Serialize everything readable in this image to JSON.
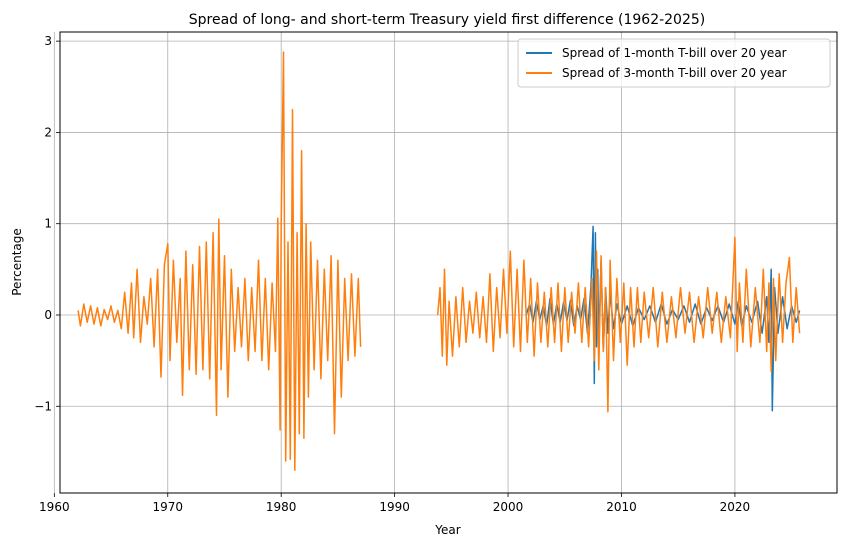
{
  "chart_data": {
    "type": "line",
    "title": "Spread of long- and short-term Treasury yield first difference (1962-2025)",
    "xlabel": "Year",
    "ylabel": "Percentage",
    "xlim": [
      1960.5,
      2029.0
    ],
    "ylim": [
      -1.95,
      3.1
    ],
    "x_ticks": [
      1960,
      1970,
      1980,
      1990,
      2000,
      2010,
      2020
    ],
    "y_ticks": [
      -1,
      0,
      1,
      2,
      3
    ],
    "y_tick_labels": [
      "−1",
      "0",
      "1",
      "2",
      "3"
    ],
    "grid": true,
    "legend_position": "upper right",
    "series": [
      {
        "name": "Spread of 1-month T-bill over 20 year",
        "color": "#1f77b4",
        "x": [
          2001.6,
          2001.9,
          2002.2,
          2002.5,
          2002.8,
          2003.1,
          2003.4,
          2003.7,
          2004.0,
          2004.3,
          2004.6,
          2004.9,
          2005.2,
          2005.5,
          2005.8,
          2006.1,
          2006.4,
          2006.7,
          2007.0,
          2007.3,
          2007.5,
          2007.6,
          2007.7,
          2007.8,
          2007.9,
          2008.0,
          2008.2,
          2008.4,
          2008.6,
          2008.8,
          2009.0,
          2009.3,
          2009.6,
          2010.0,
          2010.5,
          2011.0,
          2011.5,
          2012.0,
          2012.5,
          2013.0,
          2013.5,
          2014.0,
          2014.5,
          2015.0,
          2015.5,
          2016.0,
          2016.5,
          2017.0,
          2017.5,
          2018.0,
          2018.5,
          2019.0,
          2019.5,
          2020.0,
          2020.3,
          2020.6,
          2021.0,
          2021.5,
          2022.0,
          2022.4,
          2022.8,
          2023.0,
          2023.2,
          2023.3,
          2023.5,
          2023.8,
          2024.2,
          2024.6,
          2025.0,
          2025.4,
          2025.7
        ],
        "y": [
          0.0,
          0.12,
          -0.08,
          0.15,
          -0.05,
          0.1,
          -0.12,
          0.18,
          -0.1,
          0.12,
          -0.08,
          0.14,
          -0.06,
          0.16,
          -0.12,
          0.1,
          -0.05,
          0.18,
          -0.2,
          0.3,
          0.97,
          -0.75,
          0.9,
          -0.35,
          0.5,
          -0.3,
          0.6,
          -0.4,
          0.3,
          -0.2,
          0.25,
          -0.15,
          0.12,
          -0.1,
          0.1,
          -0.12,
          0.08,
          -0.05,
          0.1,
          -0.08,
          0.12,
          -0.1,
          0.06,
          -0.05,
          0.1,
          -0.08,
          0.12,
          -0.1,
          0.08,
          -0.06,
          0.1,
          -0.08,
          0.12,
          -0.1,
          0.15,
          -0.12,
          0.1,
          -0.08,
          0.15,
          -0.2,
          0.2,
          -0.3,
          0.5,
          -1.05,
          0.3,
          -0.2,
          0.2,
          -0.15,
          0.1,
          -0.08,
          0.05
        ]
      },
      {
        "name": "Spread of 3-month T-bill over 20 year",
        "color": "#ff7f0e",
        "x": [
          1962.1,
          1962.3,
          1962.6,
          1962.9,
          1963.2,
          1963.5,
          1963.8,
          1964.1,
          1964.4,
          1964.7,
          1965.0,
          1965.3,
          1965.6,
          1965.9,
          1966.2,
          1966.5,
          1966.8,
          1967.0,
          1967.3,
          1967.6,
          1967.9,
          1968.2,
          1968.5,
          1968.8,
          1969.1,
          1969.4,
          1969.7,
          1970.0,
          1970.2,
          1970.5,
          1970.8,
          1971.1,
          1971.3,
          1971.6,
          1971.9,
          1972.2,
          1972.5,
          1972.8,
          1973.1,
          1973.4,
          1973.7,
          1974.0,
          1974.3,
          1974.5,
          1974.7,
          1975.0,
          1975.3,
          1975.6,
          1975.9,
          1976.2,
          1976.5,
          1976.8,
          1977.1,
          1977.4,
          1977.7,
          1978.0,
          1978.3,
          1978.6,
          1978.9,
          1979.2,
          1979.5,
          1979.7,
          1979.9,
          1980.0,
          1980.2,
          1980.4,
          1980.6,
          1980.8,
          1981.0,
          1981.2,
          1981.4,
          1981.6,
          1981.8,
          1982.0,
          1982.2,
          1982.4,
          1982.6,
          1982.9,
          1983.2,
          1983.5,
          1983.8,
          1984.1,
          1984.4,
          1984.7,
          1985.0,
          1985.3,
          1985.6,
          1985.9,
          1986.2,
          1986.5,
          1986.8,
          1987.0,
          1993.8,
          1994.0,
          1994.2,
          1994.4,
          1994.6,
          1994.8,
          1995.1,
          1995.4,
          1995.7,
          1996.0,
          1996.3,
          1996.6,
          1996.9,
          1997.2,
          1997.5,
          1997.8,
          1998.1,
          1998.4,
          1998.7,
          1999.0,
          1999.3,
          1999.6,
          1999.9,
          2000.2,
          2000.5,
          2000.8,
          2001.1,
          2001.4,
          2001.7,
          2002.0,
          2002.3,
          2002.6,
          2002.9,
          2003.2,
          2003.5,
          2003.8,
          2004.1,
          2004.4,
          2004.7,
          2005.0,
          2005.3,
          2005.6,
          2005.9,
          2006.2,
          2006.5,
          2006.8,
          2007.1,
          2007.4,
          2007.6,
          2007.8,
          2008.0,
          2008.2,
          2008.4,
          2008.6,
          2008.8,
          2009.0,
          2009.3,
          2009.6,
          2009.9,
          2010.2,
          2010.5,
          2010.8,
          2011.1,
          2011.4,
          2011.7,
          2012.0,
          2012.4,
          2012.8,
          2013.2,
          2013.6,
          2014.0,
          2014.4,
          2014.8,
          2015.2,
          2015.6,
          2016.0,
          2016.4,
          2016.8,
          2017.2,
          2017.6,
          2018.0,
          2018.4,
          2018.8,
          2019.2,
          2019.6,
          2020.0,
          2020.2,
          2020.4,
          2020.7,
          2021.0,
          2021.4,
          2021.8,
          2022.2,
          2022.5,
          2022.8,
          2023.0,
          2023.2,
          2023.4,
          2023.6,
          2023.9,
          2024.2,
          2024.5,
          2024.8,
          2025.1,
          2025.4,
          2025.7
        ],
        "y": [
          0.05,
          -0.12,
          0.12,
          -0.08,
          0.1,
          -0.1,
          0.08,
          -0.12,
          0.06,
          -0.05,
          0.1,
          -0.08,
          0.05,
          -0.15,
          0.25,
          -0.2,
          0.35,
          -0.25,
          0.5,
          -0.3,
          0.2,
          -0.1,
          0.4,
          -0.35,
          0.5,
          -0.68,
          0.55,
          0.78,
          -0.5,
          0.6,
          -0.3,
          0.4,
          -0.88,
          0.7,
          -0.6,
          0.55,
          -0.65,
          0.75,
          -0.6,
          0.8,
          -0.7,
          0.9,
          -1.1,
          1.05,
          -0.6,
          0.65,
          -0.9,
          0.5,
          -0.4,
          0.3,
          -0.35,
          0.4,
          -0.5,
          0.3,
          -0.4,
          0.6,
          -0.5,
          0.4,
          -0.6,
          0.35,
          -0.4,
          1.06,
          -1.26,
          1.0,
          2.88,
          -1.6,
          0.8,
          -1.58,
          2.25,
          -1.7,
          0.9,
          -1.3,
          1.8,
          -1.35,
          1.0,
          -0.9,
          0.8,
          -0.6,
          0.6,
          -0.7,
          0.5,
          -0.5,
          0.65,
          -1.3,
          0.6,
          -0.9,
          0.4,
          -0.5,
          0.45,
          -0.45,
          0.4,
          -0.35,
          0.0,
          0.3,
          -0.45,
          0.5,
          -0.55,
          0.15,
          -0.45,
          0.2,
          -0.35,
          0.3,
          -0.3,
          0.15,
          -0.2,
          0.25,
          -0.25,
          0.2,
          -0.3,
          0.45,
          -0.4,
          0.3,
          -0.25,
          0.5,
          -0.2,
          0.7,
          -0.35,
          0.5,
          -0.4,
          0.6,
          -0.3,
          0.4,
          -0.45,
          0.35,
          -0.3,
          0.25,
          -0.35,
          0.3,
          -0.3,
          0.35,
          -0.4,
          0.3,
          -0.3,
          0.25,
          -0.2,
          0.35,
          -0.3,
          0.3,
          -0.35,
          0.4,
          -0.5,
          0.7,
          -0.6,
          0.65,
          -0.4,
          0.3,
          -1.06,
          0.6,
          -0.5,
          0.4,
          -0.3,
          0.35,
          -0.55,
          0.3,
          -0.35,
          0.3,
          -0.3,
          0.25,
          -0.25,
          0.3,
          -0.35,
          0.25,
          -0.3,
          0.2,
          -0.25,
          0.3,
          -0.2,
          0.25,
          -0.3,
          0.2,
          -0.25,
          0.3,
          -0.2,
          0.25,
          -0.3,
          0.2,
          -0.25,
          0.85,
          -0.4,
          0.35,
          -0.3,
          0.5,
          -0.35,
          0.3,
          -0.3,
          0.5,
          -0.4,
          0.35,
          -0.62,
          0.4,
          -0.5,
          0.45,
          -0.3,
          0.35,
          0.63,
          -0.3,
          0.3,
          -0.2
        ]
      }
    ]
  }
}
